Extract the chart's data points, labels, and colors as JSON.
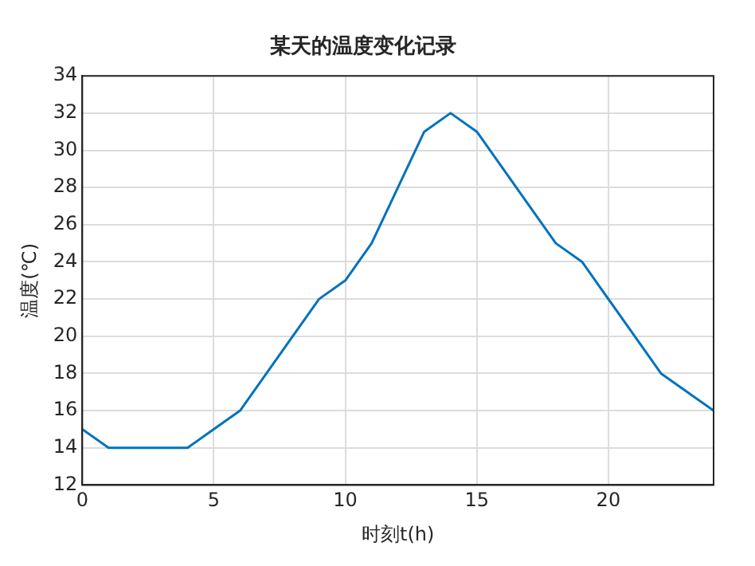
{
  "chart_data": {
    "type": "line",
    "title": "某天的温度变化记录",
    "xlabel": "时刻t(h)",
    "ylabel": "温度(℃)",
    "x": [
      0,
      1,
      4,
      6,
      9,
      10,
      11,
      13,
      14,
      15,
      18,
      19,
      22,
      24
    ],
    "series": [
      {
        "color": "#0072bd",
        "values": [
          15,
          14,
          14,
          16,
          22,
          23,
          25,
          31,
          32,
          31,
          25,
          24,
          18,
          16
        ]
      }
    ],
    "xlim": [
      0,
      24
    ],
    "xticks": [
      0,
      5,
      10,
      15,
      20
    ],
    "ylim": [
      12,
      34
    ],
    "yticks": [
      12,
      14,
      16,
      18,
      20,
      22,
      24,
      26,
      28,
      30,
      32,
      34
    ],
    "grid": true,
    "legend": false,
    "marker": "none",
    "line_style": "solid"
  }
}
